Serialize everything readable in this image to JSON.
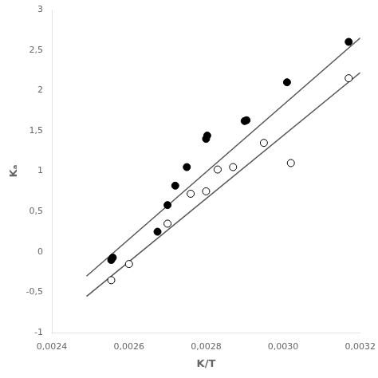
{
  "chart_data": {
    "type": "scatter",
    "x_label": "K/T",
    "y_label": "Kₐ",
    "xlim": [
      0.0024,
      0.0032
    ],
    "ylim": [
      -1.0,
      3.0
    ],
    "xticks": [
      {
        "value": 0.0024,
        "label": "0,0024"
      },
      {
        "value": 0.0026,
        "label": "0,0026"
      },
      {
        "value": 0.0028,
        "label": "0,0028"
      },
      {
        "value": 0.003,
        "label": "0,0030"
      },
      {
        "value": 0.0032,
        "label": "0,0032"
      }
    ],
    "yticks": [
      -1,
      {
        "value": -0.5,
        "label": "-0,5"
      },
      0,
      {
        "value": 0.5,
        "label": "0,5"
      },
      1,
      {
        "value": 1.5,
        "label": "1,5"
      },
      2,
      {
        "value": 2.5,
        "label": "2,5"
      },
      3
    ],
    "grid": false,
    "series": [
      {
        "type": "line",
        "color": "#555555",
        "line_style": "solid",
        "x": [
          0.00249,
          0.0032
        ],
        "values": [
          -0.3,
          2.65
        ]
      },
      {
        "type": "line",
        "color": "#555555",
        "line_style": "solid",
        "x": [
          0.00249,
          0.0032
        ],
        "values": [
          -0.55,
          2.22
        ]
      },
      {
        "type": "scatter",
        "color": "#000000",
        "marker": "filled_circle",
        "x": [
          0.002554,
          0.002558,
          0.002674,
          0.0027,
          0.00272,
          0.00275,
          0.0028,
          0.002803,
          0.0029,
          0.002905,
          0.00301,
          0.00317
        ],
        "values": [
          -0.1,
          -0.07,
          0.25,
          0.58,
          0.82,
          1.05,
          1.4,
          1.44,
          1.62,
          1.63,
          2.1,
          2.6
        ]
      },
      {
        "type": "scatter",
        "color": "#000000",
        "marker": "open_circle",
        "x": [
          0.002554,
          0.0026,
          0.0027,
          0.00276,
          0.0028,
          0.00283,
          0.00287,
          0.00295,
          0.00302,
          0.00317
        ],
        "values": [
          -0.35,
          -0.15,
          0.35,
          0.72,
          0.75,
          1.02,
          1.05,
          1.35,
          1.1,
          2.15
        ]
      }
    ]
  }
}
